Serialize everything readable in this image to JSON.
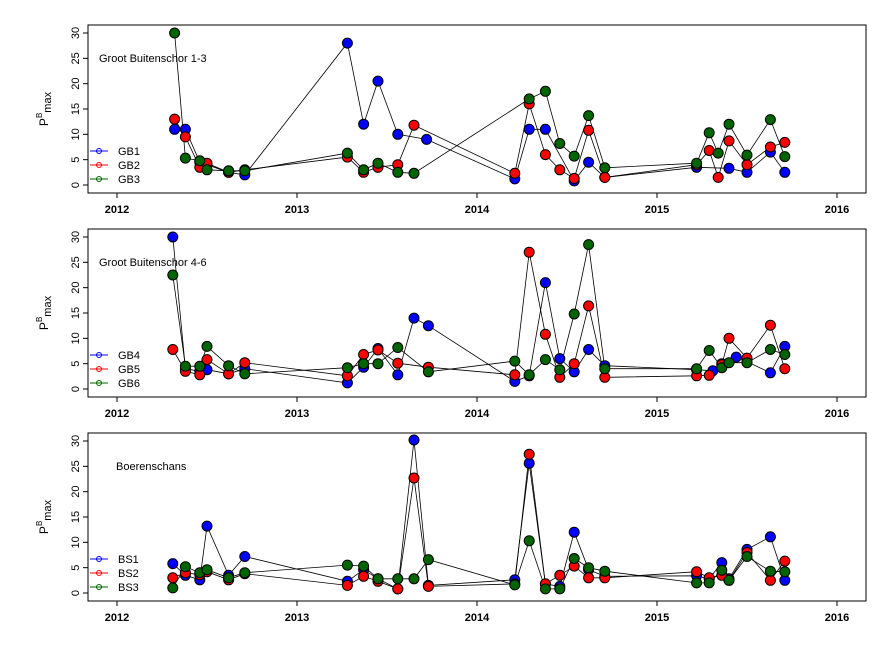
{
  "chart_data": [
    {
      "type": "line",
      "title": "Groot Buitenschor 1-3",
      "ylabel": "P",
      "ylabel_sup": "B",
      "ylabel_sub": "max",
      "xlim": [
        2012.0,
        2016.0
      ],
      "ylim": [
        0,
        30
      ],
      "xticks": [
        "2012",
        "2013",
        "2014",
        "2015",
        "2016"
      ],
      "yticks": [
        "0",
        "5",
        "10",
        "15",
        "20",
        "25",
        "30"
      ],
      "legend_position": "bottom-left",
      "series": [
        {
          "name": "GB1",
          "color": "#0000ff",
          "x": [
            2012.32,
            2012.38,
            2012.46,
            2012.5,
            2012.62,
            2012.71,
            2013.28,
            2013.37,
            2013.45,
            2013.56,
            2013.72,
            2014.21,
            2014.29,
            2014.38,
            2014.54,
            2014.62,
            2014.71,
            2015.22,
            2015.4,
            2015.5,
            2015.63,
            2015.71
          ],
          "y": [
            11,
            11,
            4.5,
            4,
            2.5,
            2,
            28,
            12,
            20.5,
            10,
            9,
            1.2,
            11,
            11,
            0.8,
            4.5,
            1.5,
            3.5,
            3.3,
            2.5,
            6.5,
            2.5
          ]
        },
        {
          "name": "GB2",
          "color": "#ff0000",
          "x": [
            2012.32,
            2012.38,
            2012.46,
            2012.5,
            2012.62,
            2012.71,
            2013.28,
            2013.37,
            2013.45,
            2013.56,
            2013.65,
            2014.21,
            2014.29,
            2014.38,
            2014.46,
            2014.54,
            2014.62,
            2014.71,
            2015.22,
            2015.29,
            2015.34,
            2015.4,
            2015.5,
            2015.63,
            2015.71
          ],
          "y": [
            13,
            9.5,
            3.5,
            4.3,
            2.5,
            3,
            5.5,
            2.5,
            3.5,
            4,
            11.8,
            2.3,
            16,
            6,
            3,
            1.3,
            10.8,
            1.5,
            4,
            6.8,
            1.5,
            8.7,
            4,
            7.5,
            8.4
          ]
        },
        {
          "name": "GB3",
          "color": "#006400",
          "x": [
            2012.32,
            2012.38,
            2012.46,
            2012.5,
            2012.62,
            2012.71,
            2013.28,
            2013.37,
            2013.45,
            2013.56,
            2013.65,
            2014.29,
            2014.38,
            2014.46,
            2014.54,
            2014.62,
            2014.71,
            2015.22,
            2015.29,
            2015.34,
            2015.4,
            2015.5,
            2015.63,
            2015.71
          ],
          "y": [
            30,
            5.3,
            4.8,
            3,
            2.8,
            2.8,
            6.3,
            3,
            4.3,
            2.5,
            2.3,
            17,
            18.5,
            8.2,
            5.7,
            13.7,
            3.4,
            4.3,
            10.3,
            6.3,
            12,
            5.9,
            12.9,
            5.6
          ]
        }
      ]
    },
    {
      "type": "line",
      "title": "Groot Buitenschor 4-6",
      "ylabel": "P",
      "ylabel_sup": "B",
      "ylabel_sub": "max",
      "xlim": [
        2012.0,
        2016.0
      ],
      "ylim": [
        0,
        30
      ],
      "xticks": [
        "2012",
        "2013",
        "2014",
        "2015",
        "2016"
      ],
      "yticks": [
        "0",
        "5",
        "10",
        "15",
        "20",
        "25",
        "30"
      ],
      "legend_position": "bottom-left",
      "series": [
        {
          "name": "GB4",
          "color": "#0000ff",
          "x": [
            2012.31,
            2012.38,
            2012.46,
            2012.5,
            2012.62,
            2012.71,
            2013.28,
            2013.37,
            2013.45,
            2013.56,
            2013.65,
            2013.73,
            2014.21,
            2014.29,
            2014.38,
            2014.46,
            2014.54,
            2014.62,
            2014.71,
            2015.22,
            2015.31,
            2015.36,
            2015.44,
            2015.5,
            2015.63,
            2015.71
          ],
          "y": [
            30,
            4,
            3.5,
            3.8,
            3,
            4,
            1.2,
            4.3,
            8,
            2.8,
            14,
            12.5,
            1.5,
            2.6,
            21,
            6,
            3.4,
            7.8,
            4.6,
            3.8,
            3.6,
            5,
            6.3,
            5.4,
            3.2,
            8.4
          ]
        },
        {
          "name": "GB5",
          "color": "#ff0000",
          "x": [
            2012.31,
            2012.38,
            2012.46,
            2012.5,
            2012.62,
            2012.71,
            2013.28,
            2013.37,
            2013.45,
            2013.56,
            2013.73,
            2014.21,
            2014.29,
            2014.38,
            2014.46,
            2014.54,
            2014.62,
            2014.71,
            2015.22,
            2015.29,
            2015.36,
            2015.4,
            2015.5,
            2015.63,
            2015.71
          ],
          "y": [
            7.8,
            3.5,
            2.8,
            5.8,
            3,
            5.2,
            2.6,
            6.8,
            7.7,
            5.1,
            4.3,
            2.8,
            27,
            10.8,
            2.3,
            5,
            16.4,
            2.3,
            2.6,
            2.7,
            4.8,
            10,
            6.1,
            12.6,
            4
          ]
        },
        {
          "name": "GB6",
          "color": "#006400",
          "x": [
            2012.31,
            2012.38,
            2012.46,
            2012.5,
            2012.62,
            2012.71,
            2013.28,
            2013.37,
            2013.45,
            2013.56,
            2013.73,
            2014.21,
            2014.29,
            2014.38,
            2014.46,
            2014.54,
            2014.62,
            2014.71,
            2015.22,
            2015.29,
            2015.36,
            2015.4,
            2015.5,
            2015.63,
            2015.71
          ],
          "y": [
            22.5,
            4.5,
            4.5,
            8.4,
            4.6,
            3,
            4.2,
            5,
            5,
            8.2,
            3.4,
            5.5,
            2.8,
            5.8,
            3.8,
            14.8,
            28.5,
            4,
            4,
            7.6,
            4.2,
            5.2,
            5.2,
            7.8,
            6.8
          ]
        }
      ]
    },
    {
      "type": "line",
      "title": "Boerenschans",
      "ylabel": "P",
      "ylabel_sup": "B",
      "ylabel_sub": "max",
      "xlim": [
        2012.0,
        2016.0
      ],
      "ylim": [
        0,
        30
      ],
      "xticks": [
        "2012",
        "2013",
        "2014",
        "2015",
        "2016"
      ],
      "yticks": [
        "0",
        "5",
        "10",
        "15",
        "20",
        "25",
        "30"
      ],
      "legend_position": "bottom-left",
      "series": [
        {
          "name": "BS1",
          "color": "#0000ff",
          "x": [
            2012.31,
            2012.38,
            2012.46,
            2012.5,
            2012.62,
            2012.71,
            2013.28,
            2013.37,
            2013.45,
            2013.56,
            2013.65,
            2013.73,
            2014.21,
            2014.29,
            2014.38,
            2014.46,
            2014.54,
            2014.62,
            2014.71,
            2015.22,
            2015.29,
            2015.36,
            2015.4,
            2015.5,
            2015.63,
            2015.71
          ],
          "y": [
            5.8,
            3.5,
            2.6,
            13.2,
            3.5,
            7.2,
            2.3,
            4.6,
            2.8,
            0.8,
            30.2,
            1.5,
            2.6,
            25.6,
            1.8,
            1.3,
            12,
            4.6,
            3.3,
            3.4,
            2.8,
            6,
            2.8,
            8.6,
            11.1,
            2.5
          ]
        },
        {
          "name": "BS2",
          "color": "#ff0000",
          "x": [
            2012.31,
            2012.38,
            2012.46,
            2012.5,
            2012.62,
            2012.71,
            2013.28,
            2013.37,
            2013.45,
            2013.56,
            2013.65,
            2013.73,
            2014.21,
            2014.29,
            2014.38,
            2014.46,
            2014.54,
            2014.62,
            2014.71,
            2015.22,
            2015.29,
            2015.36,
            2015.4,
            2015.5,
            2015.63,
            2015.71
          ],
          "y": [
            3,
            4,
            3.6,
            4.2,
            2.6,
            3.8,
            1.5,
            3.3,
            2.3,
            0.8,
            22.7,
            1.3,
            1.8,
            27.4,
            1.8,
            3.5,
            5.3,
            3,
            3,
            4.2,
            3,
            3.5,
            2.5,
            8,
            2.5,
            6.3
          ]
        },
        {
          "name": "BS3",
          "color": "#006400",
          "x": [
            2012.31,
            2012.38,
            2012.46,
            2012.5,
            2012.62,
            2012.71,
            2013.28,
            2013.37,
            2013.45,
            2013.56,
            2013.65,
            2013.73,
            2014.21,
            2014.29,
            2014.38,
            2014.46,
            2014.54,
            2014.62,
            2014.71,
            2015.22,
            2015.29,
            2015.36,
            2015.4,
            2015.5,
            2015.63,
            2015.71
          ],
          "y": [
            1,
            5.2,
            4,
            4.6,
            3,
            4,
            5.5,
            5.3,
            2.8,
            2.8,
            2.8,
            6.6,
            1.6,
            10.3,
            0.8,
            0.8,
            6.8,
            5,
            4.3,
            2,
            2,
            4.5,
            2.5,
            7.2,
            4.3,
            4.2
          ]
        }
      ]
    }
  ]
}
